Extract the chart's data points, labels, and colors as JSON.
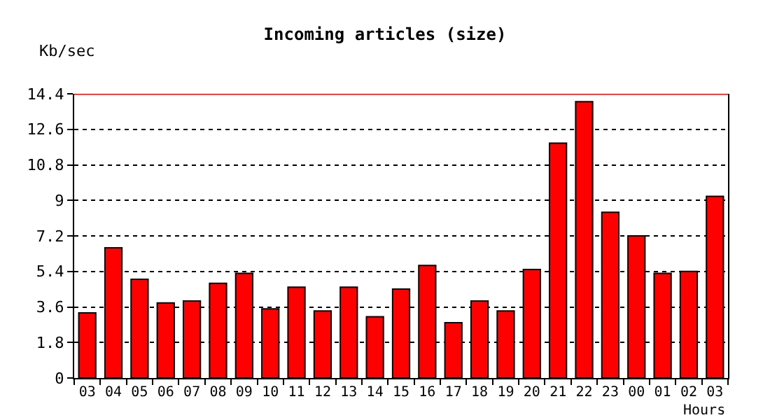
{
  "chart_data": {
    "type": "bar",
    "title": "Incoming articles (size)",
    "xlabel": "Hours",
    "ylabel": "Kb/sec",
    "categories": [
      "03",
      "04",
      "05",
      "06",
      "07",
      "08",
      "09",
      "10",
      "11",
      "12",
      "13",
      "14",
      "15",
      "16",
      "17",
      "18",
      "19",
      "20",
      "21",
      "22",
      "23",
      "00",
      "01",
      "02",
      "03"
    ],
    "series": [
      {
        "color": "#ff0000",
        "values": [
          3.3,
          6.6,
          5.0,
          3.8,
          3.9,
          4.8,
          5.3,
          3.5,
          4.6,
          3.4,
          4.6,
          3.1,
          4.5,
          5.7,
          2.8,
          3.9,
          3.4,
          5.5,
          11.9,
          14.0,
          8.4,
          7.2,
          5.3,
          5.4,
          9.2
        ]
      }
    ],
    "ylim": [
      0,
      14.4
    ],
    "yticks": [
      0,
      1.8,
      3.6,
      5.4,
      7.2,
      9,
      10.8,
      12.6,
      14.4
    ],
    "ref_lines": [
      {
        "axis": "y",
        "value": 14.4,
        "color": "#ff0000",
        "line_style": "solid"
      }
    ],
    "grid": "y"
  }
}
